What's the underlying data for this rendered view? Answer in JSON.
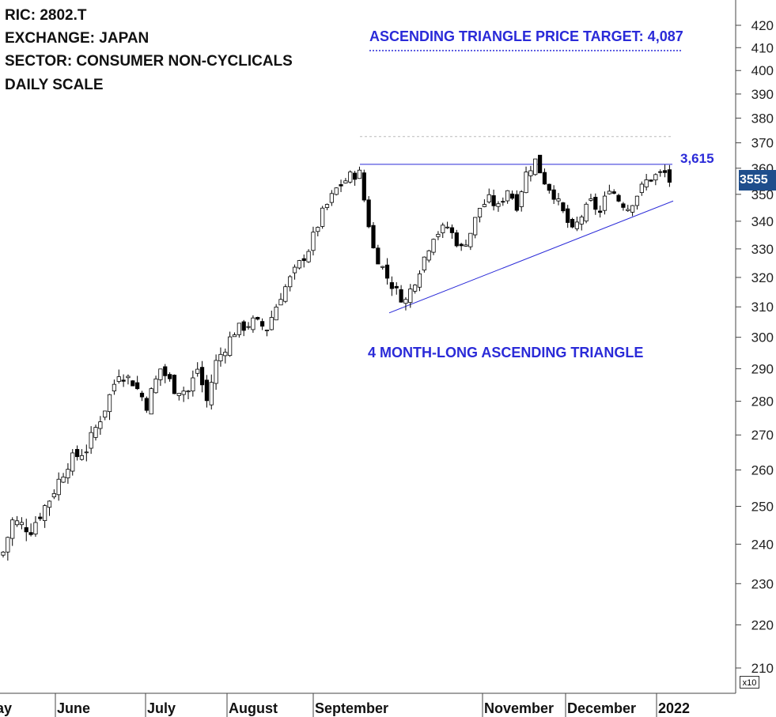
{
  "header": {
    "ric": "RIC: 2802.T",
    "exchange": "EXCHANGE: JAPAN",
    "sector": "SECTOR: CONSUMER NON-CYCLICALS",
    "scale": "DAILY SCALE"
  },
  "annotations": {
    "target": "ASCENDING TRIANGLE PRICE TARGET: 4,087",
    "pattern": "4 MONTH-LONG ASCENDING TRIANGLE",
    "resistance": "3,615"
  },
  "last_price": "3555",
  "scale_factor": "x10",
  "colors": {
    "annotation": "#2a2ad8",
    "price_box": "#1f4e8c",
    "candle": "#000000"
  },
  "chart_data": {
    "type": "candlestick",
    "y_unit_label": "x10",
    "ylim": [
      205,
      428
    ],
    "y_ticks": [
      210,
      220,
      230,
      240,
      250,
      260,
      270,
      280,
      290,
      300,
      310,
      320,
      330,
      340,
      350,
      360,
      370,
      380,
      390,
      400,
      410,
      420
    ],
    "x_labels": [
      "May",
      "June",
      "July",
      "August",
      "September",
      "November",
      "December",
      "2022"
    ],
    "resistance_level": 361.5,
    "target_level": 408.7,
    "support_line": {
      "from": [
        0,
        308
      ],
      "to": [
        1,
        347.5
      ]
    },
    "close_anchors": [
      [
        0,
        238
      ],
      [
        2,
        246
      ],
      [
        6,
        244
      ],
      [
        10,
        252
      ],
      [
        14,
        262
      ],
      [
        18,
        266
      ],
      [
        22,
        278
      ],
      [
        25,
        289
      ],
      [
        28,
        286
      ],
      [
        31,
        279
      ],
      [
        34,
        290
      ],
      [
        37,
        284
      ],
      [
        40,
        283
      ],
      [
        42,
        290
      ],
      [
        44,
        280
      ],
      [
        46,
        292
      ],
      [
        50,
        302
      ],
      [
        54,
        305
      ],
      [
        57,
        303
      ],
      [
        60,
        314
      ],
      [
        63,
        322
      ],
      [
        66,
        330
      ],
      [
        69,
        343
      ],
      [
        72,
        352
      ],
      [
        75,
        357
      ],
      [
        77,
        358
      ],
      [
        78,
        348
      ],
      [
        80,
        330
      ],
      [
        83,
        320
      ],
      [
        85,
        315
      ],
      [
        87,
        312
      ],
      [
        90,
        323
      ],
      [
        93,
        335
      ],
      [
        96,
        338
      ],
      [
        99,
        330
      ],
      [
        101,
        336
      ],
      [
        103,
        345
      ],
      [
        105,
        348
      ],
      [
        107,
        345
      ],
      [
        109,
        352
      ],
      [
        111,
        346
      ],
      [
        113,
        358
      ],
      [
        115,
        363
      ],
      [
        117,
        355
      ],
      [
        119,
        350
      ],
      [
        121,
        343
      ],
      [
        123,
        336
      ],
      [
        125,
        342
      ],
      [
        127,
        347
      ],
      [
        129,
        343
      ],
      [
        131,
        353
      ],
      [
        133,
        348
      ],
      [
        135,
        345
      ],
      [
        137,
        350
      ],
      [
        139,
        355
      ],
      [
        141,
        357
      ],
      [
        143,
        358
      ],
      [
        144,
        355
      ]
    ]
  }
}
